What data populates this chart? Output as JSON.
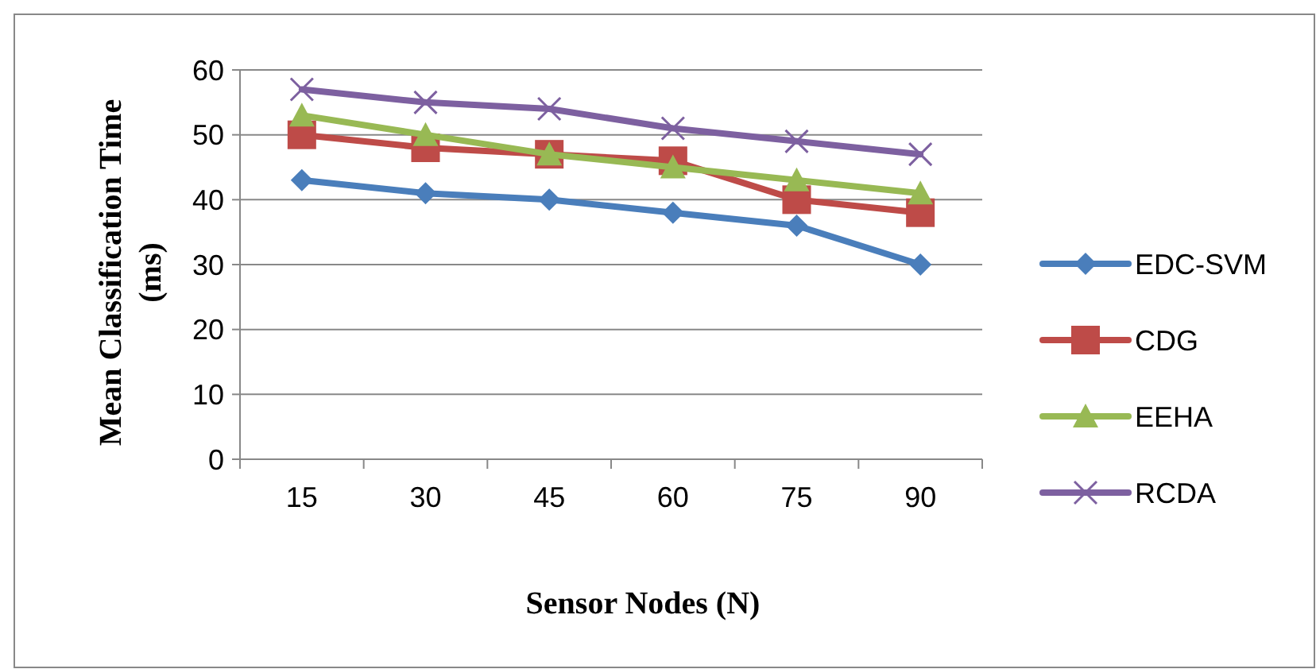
{
  "chart_data": {
    "type": "line",
    "xlabel": "Sensor Nodes (N)",
    "ylabel": "Mean Classification Time (ms)",
    "categories": [
      "15",
      "30",
      "45",
      "60",
      "75",
      "90"
    ],
    "series": [
      {
        "name": "EDC-SVM",
        "color": "#4a7ebb",
        "marker": "diamond",
        "values": [
          43,
          41,
          40,
          38,
          36,
          30
        ]
      },
      {
        "name": "CDG",
        "color": "#be4b48",
        "marker": "square",
        "values": [
          50,
          48,
          47,
          46,
          40,
          38
        ]
      },
      {
        "name": "EEHA",
        "color": "#98b954",
        "marker": "triangle",
        "values": [
          53,
          50,
          47,
          45,
          43,
          41
        ]
      },
      {
        "name": "RCDA",
        "color": "#7d60a0",
        "marker": "cross",
        "values": [
          57,
          55,
          54,
          51,
          49,
          47
        ]
      }
    ],
    "ylim": [
      0,
      60
    ],
    "yticks": [
      0,
      10,
      20,
      30,
      40,
      50,
      60
    ],
    "grid": "y",
    "legend": "right",
    "line_style": "solid"
  }
}
